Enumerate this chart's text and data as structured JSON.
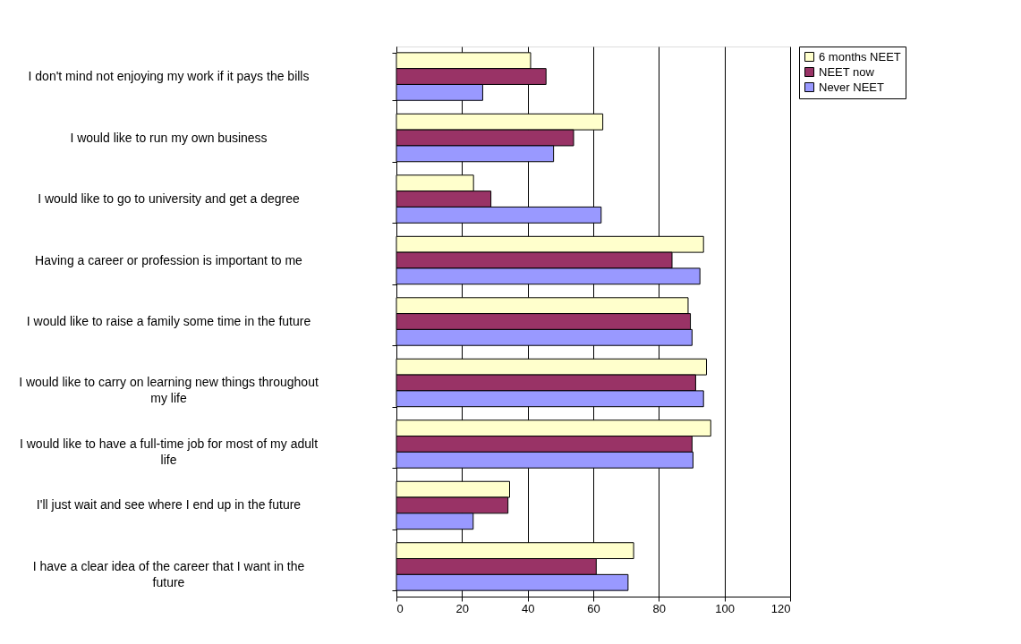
{
  "chart_data": {
    "type": "bar",
    "orientation": "horizontal",
    "categories": [
      "I don't mind not enjoying my work if it pays the bills",
      "I would like to run my own business",
      "I would like to go to university and get a degree",
      "Having a career or profession is important to me",
      "I would like to raise a family some time in the future",
      "I would like to carry on learning new things throughout my life",
      "I would like to have a full-time job for most of my adult life",
      "I'll just wait and see where I end up in the future",
      "I have a clear idea of the career that I want in the future"
    ],
    "series": [
      {
        "name": "6 months NEET",
        "color": "#ffffcc",
        "values": [
          40.9,
          62.9,
          23.5,
          93.6,
          88.9,
          94.5,
          95.8,
          34.5,
          72.3
        ]
      },
      {
        "name": "NEET now",
        "color": "#993366",
        "values": [
          45.6,
          54.0,
          28.8,
          84.0,
          89.6,
          91.2,
          90.1,
          34.0,
          60.9
        ]
      },
      {
        "name": "Never NEET",
        "color": "#9999ff",
        "values": [
          26.3,
          47.9,
          62.4,
          92.5,
          90.1,
          93.6,
          90.4,
          23.4,
          70.6
        ]
      }
    ],
    "xlim": [
      0,
      120
    ],
    "xticks": [
      0,
      20,
      40,
      60,
      80,
      100,
      120
    ],
    "grid": "x",
    "legend": "right"
  }
}
